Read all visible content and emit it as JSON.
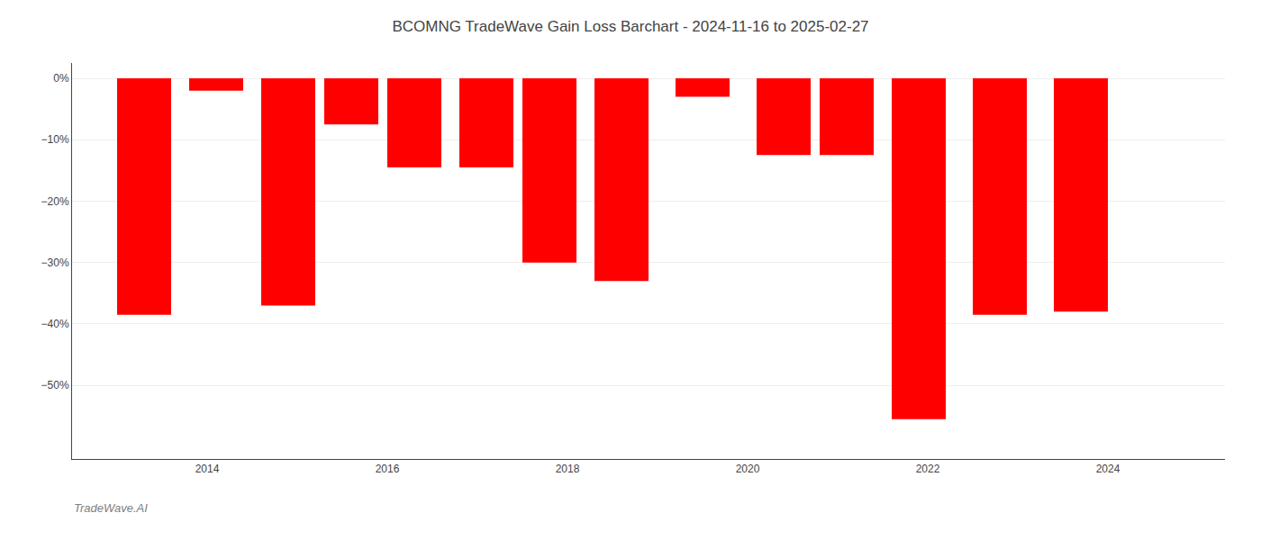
{
  "chart_data": {
    "type": "bar",
    "title": "BCOMNG TradeWave Gain Loss Barchart - 2024-11-16 to 2025-02-27",
    "x": [
      2013.3,
      2014.1,
      2014.9,
      2015.6,
      2016.3,
      2017.1,
      2017.8,
      2018.6,
      2019.5,
      2020.4,
      2021.1,
      2021.9,
      2022.8,
      2023.7
    ],
    "values": [
      -38.5,
      -2.0,
      -37.0,
      -7.5,
      -14.5,
      -14.5,
      -30.0,
      -33.0,
      -3.0,
      -12.5,
      -12.5,
      -55.5,
      -38.5,
      -38.0
    ],
    "color": "#ff0000",
    "xlim": [
      2012.5,
      2025.3
    ],
    "xticks": [
      2014,
      2016,
      2018,
      2020,
      2022,
      2024
    ],
    "ylim": [
      -62,
      2.5
    ],
    "yticks": [
      {
        "value": 0,
        "label": "0%"
      },
      {
        "value": -10,
        "label": "−10%"
      },
      {
        "value": -20,
        "label": "−20%"
      },
      {
        "value": -30,
        "label": "−30%"
      },
      {
        "value": -40,
        "label": "−40%"
      },
      {
        "value": -50,
        "label": "−50%"
      }
    ],
    "grid": true,
    "annotations": [
      "TradeWave.AI"
    ]
  }
}
